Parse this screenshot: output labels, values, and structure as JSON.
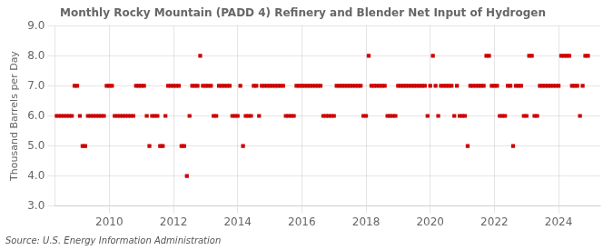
{
  "chart_data": {
    "type": "scatter",
    "title": "Monthly Rocky Mountain (PADD 4) Refinery and Blender Net Input of Hydrogen",
    "ylabel": "Thousand Barrels per Day",
    "annotations": [
      "Source: U.S. Energy Information Administration"
    ],
    "color": "#cc0000",
    "marker": "square",
    "grid": true,
    "xlim": [
      2008.3,
      2025.3
    ],
    "xticks": [
      2010,
      2012,
      2014,
      2016,
      2018,
      2020,
      2022,
      2024
    ],
    "ylim": [
      3.0,
      9.0
    ],
    "yticks": [
      {
        "value": 3.0,
        "label": "3.0"
      },
      {
        "value": 4.0,
        "label": "4.0"
      },
      {
        "value": 5.0,
        "label": "5.0"
      },
      {
        "value": 6.0,
        "label": "6.0"
      },
      {
        "value": 7.0,
        "label": "7.0"
      },
      {
        "value": 8.0,
        "label": "8.0"
      },
      {
        "value": 9.0,
        "label": "9.0"
      }
    ],
    "x": [
      2008.333,
      2008.417,
      2008.5,
      2008.583,
      2008.667,
      2008.75,
      2008.833,
      2008.917,
      2009.0,
      2009.083,
      2009.167,
      2009.25,
      2009.333,
      2009.417,
      2009.5,
      2009.583,
      2009.667,
      2009.75,
      2009.833,
      2009.917,
      2010.0,
      2010.083,
      2010.167,
      2010.25,
      2010.333,
      2010.417,
      2010.5,
      2010.583,
      2010.667,
      2010.75,
      2010.833,
      2010.917,
      2011.0,
      2011.083,
      2011.167,
      2011.25,
      2011.333,
      2011.417,
      2011.5,
      2011.583,
      2011.667,
      2011.75,
      2011.833,
      2011.917,
      2012.0,
      2012.083,
      2012.167,
      2012.25,
      2012.333,
      2012.417,
      2012.5,
      2012.583,
      2012.667,
      2012.75,
      2012.833,
      2012.917,
      2013.0,
      2013.083,
      2013.167,
      2013.25,
      2013.333,
      2013.417,
      2013.5,
      2013.583,
      2013.667,
      2013.75,
      2013.833,
      2013.917,
      2014.0,
      2014.083,
      2014.167,
      2014.25,
      2014.333,
      2014.417,
      2014.5,
      2014.583,
      2014.667,
      2014.75,
      2014.833,
      2014.917,
      2015.0,
      2015.083,
      2015.167,
      2015.25,
      2015.333,
      2015.417,
      2015.5,
      2015.583,
      2015.667,
      2015.75,
      2015.833,
      2015.917,
      2016.0,
      2016.083,
      2016.167,
      2016.25,
      2016.333,
      2016.417,
      2016.5,
      2016.583,
      2016.667,
      2016.75,
      2016.833,
      2016.917,
      2017.0,
      2017.083,
      2017.167,
      2017.25,
      2017.333,
      2017.417,
      2017.5,
      2017.583,
      2017.667,
      2017.75,
      2017.833,
      2017.917,
      2018.0,
      2018.083,
      2018.167,
      2018.25,
      2018.333,
      2018.417,
      2018.5,
      2018.583,
      2018.667,
      2018.75,
      2018.833,
      2018.917,
      2019.0,
      2019.083,
      2019.167,
      2019.25,
      2019.333,
      2019.417,
      2019.5,
      2019.583,
      2019.667,
      2019.75,
      2019.833,
      2019.917,
      2020.0,
      2020.083,
      2020.167,
      2020.25,
      2020.333,
      2020.417,
      2020.5,
      2020.583,
      2020.667,
      2020.75,
      2020.833,
      2020.917,
      2021.0,
      2021.083,
      2021.167,
      2021.25,
      2021.333,
      2021.417,
      2021.5,
      2021.583,
      2021.667,
      2021.75,
      2021.833,
      2021.917,
      2022.0,
      2022.083,
      2022.167,
      2022.25,
      2022.333,
      2022.417,
      2022.5,
      2022.583,
      2022.667,
      2022.75,
      2022.833,
      2022.917,
      2023.0,
      2023.083,
      2023.167,
      2023.25,
      2023.333,
      2023.417,
      2023.5,
      2023.583,
      2023.667,
      2023.75,
      2023.833,
      2023.917,
      2024.0,
      2024.083,
      2024.167,
      2024.25,
      2024.333,
      2024.417,
      2024.5,
      2024.583,
      2024.667,
      2024.75,
      2024.833,
      2024.917
    ],
    "values": [
      6.0,
      6.0,
      6.0,
      6.0,
      6.0,
      6.0,
      6.0,
      7.0,
      7.0,
      6.0,
      5.0,
      5.0,
      6.0,
      6.0,
      6.0,
      6.0,
      6.0,
      6.0,
      6.0,
      7.0,
      7.0,
      7.0,
      6.0,
      6.0,
      6.0,
      6.0,
      6.0,
      6.0,
      6.0,
      6.0,
      7.0,
      7.0,
      7.0,
      7.0,
      6.0,
      5.0,
      6.0,
      6.0,
      6.0,
      5.0,
      5.0,
      6.0,
      7.0,
      7.0,
      7.0,
      7.0,
      7.0,
      5.0,
      5.0,
      4.0,
      6.0,
      7.0,
      7.0,
      7.0,
      8.0,
      7.0,
      7.0,
      7.0,
      7.0,
      6.0,
      6.0,
      7.0,
      7.0,
      7.0,
      7.0,
      7.0,
      6.0,
      6.0,
      6.0,
      7.0,
      5.0,
      6.0,
      6.0,
      6.0,
      7.0,
      7.0,
      6.0,
      7.0,
      7.0,
      7.0,
      7.0,
      7.0,
      7.0,
      7.0,
      7.0,
      7.0,
      6.0,
      6.0,
      6.0,
      6.0,
      7.0,
      7.0,
      7.0,
      7.0,
      7.0,
      7.0,
      7.0,
      7.0,
      7.0,
      7.0,
      6.0,
      6.0,
      6.0,
      6.0,
      6.0,
      7.0,
      7.0,
      7.0,
      7.0,
      7.0,
      7.0,
      7.0,
      7.0,
      7.0,
      7.0,
      6.0,
      6.0,
      8.0,
      7.0,
      7.0,
      7.0,
      7.0,
      7.0,
      7.0,
      6.0,
      6.0,
      6.0,
      6.0,
      7.0,
      7.0,
      7.0,
      7.0,
      7.0,
      7.0,
      7.0,
      7.0,
      7.0,
      7.0,
      7.0,
      6.0,
      7.0,
      8.0,
      7.0,
      6.0,
      7.0,
      7.0,
      7.0,
      7.0,
      7.0,
      6.0,
      7.0,
      6.0,
      6.0,
      6.0,
      5.0,
      7.0,
      7.0,
      7.0,
      7.0,
      7.0,
      7.0,
      8.0,
      8.0,
      7.0,
      7.0,
      7.0,
      6.0,
      6.0,
      6.0,
      7.0,
      7.0,
      5.0,
      7.0,
      7.0,
      7.0,
      6.0,
      6.0,
      8.0,
      8.0,
      6.0,
      6.0,
      7.0,
      7.0,
      7.0,
      7.0,
      7.0,
      7.0,
      7.0,
      7.0,
      8.0,
      8.0,
      8.0,
      8.0,
      7.0,
      7.0,
      7.0,
      6.0,
      7.0,
      8.0,
      8.0
    ]
  }
}
